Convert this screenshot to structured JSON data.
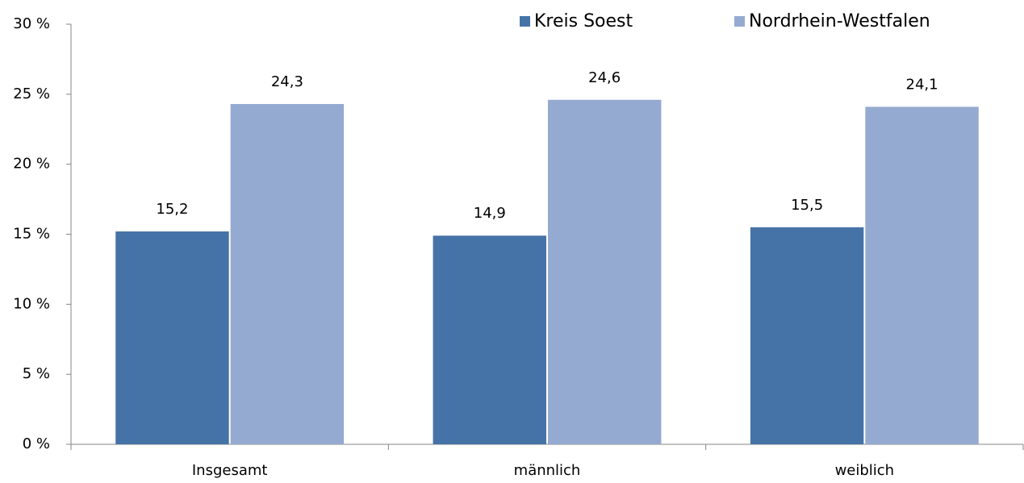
{
  "chart_data": {
    "type": "bar",
    "categories": [
      "Insgesamt",
      "männlich",
      "weiblich"
    ],
    "series": [
      {
        "name": "Kreis Soest",
        "color": "#4673a7",
        "values": [
          15.2,
          14.9,
          15.5
        ],
        "value_labels": [
          "15,2",
          "14,9",
          "15,5"
        ]
      },
      {
        "name": "Nordrhein-Westfalen",
        "color": "#95aad1",
        "values": [
          24.3,
          24.6,
          24.1
        ],
        "value_labels": [
          "24,3",
          "24,6",
          "24,1"
        ]
      }
    ],
    "ylim": [
      0,
      30
    ],
    "yticks": [
      {
        "value": 0,
        "label": "0 %"
      },
      {
        "value": 5,
        "label": "5 %"
      },
      {
        "value": 10,
        "label": "10 %"
      },
      {
        "value": 15,
        "label": "15 %"
      },
      {
        "value": 20,
        "label": "20 %"
      },
      {
        "value": 25,
        "label": "25 %"
      },
      {
        "value": 30,
        "label": "30 %"
      }
    ],
    "grid": false,
    "legend": "top"
  }
}
